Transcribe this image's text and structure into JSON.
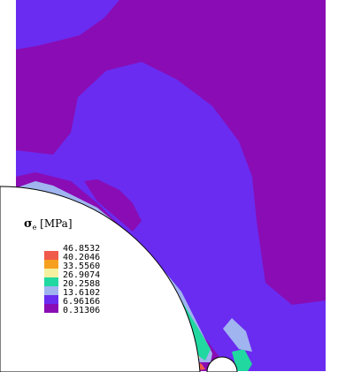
{
  "legend": {
    "symbol": "σ",
    "subscript": "e",
    "unit": "[MPa]",
    "levels": [
      {
        "label": "46.8532",
        "color": "#f05a4a"
      },
      {
        "label": "40.2046",
        "color": "#f7a020"
      },
      {
        "label": "33.5560",
        "color": "#f5f0a0"
      },
      {
        "label": "26.9074",
        "color": "#20d8a0"
      },
      {
        "label": "20.2588",
        "color": "#a0b4f0"
      },
      {
        "label": "13.6102",
        "color": "#6a2cf0"
      },
      {
        "label": "6.96166",
        "color": "#8a0cb4"
      },
      {
        "label": "0.31306",
        "color": "#8a0cb4"
      }
    ]
  },
  "colors": {
    "background": "#8a0cb4",
    "blue": "#6a2cf0",
    "lavender": "#a0b4f0",
    "cyan": "#20d8a0",
    "yellow": "#f5f0a0",
    "orange": "#f7a020",
    "red": "#f05a4a"
  }
}
